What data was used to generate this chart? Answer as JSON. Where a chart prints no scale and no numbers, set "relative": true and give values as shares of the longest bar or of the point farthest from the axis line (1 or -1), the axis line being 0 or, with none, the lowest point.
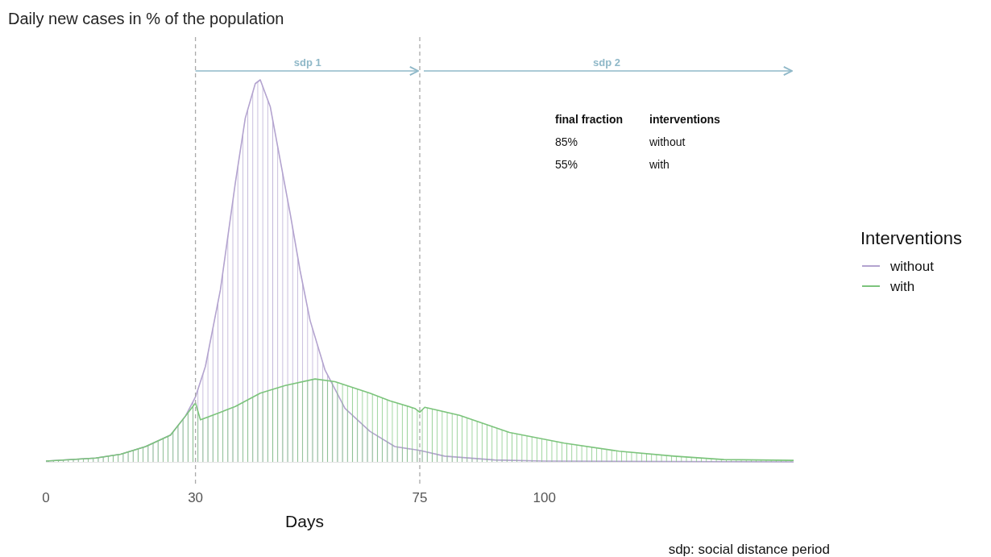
{
  "chart_data": {
    "type": "area",
    "title": "Daily new cases in % of the population",
    "xlabel": "Days",
    "legend_title": "Interventions",
    "relative": true,
    "xlim": [
      0,
      150
    ],
    "xticks": [
      0,
      30,
      75,
      100
    ],
    "grid": false,
    "legend": "right",
    "line_style": "solid",
    "marker": "none",
    "series": [
      {
        "name": "without",
        "color": "#b3a3cf",
        "x": [
          0,
          10,
          15,
          20,
          25,
          28,
          30,
          32,
          35,
          38,
          40,
          42,
          43,
          45,
          47,
          49,
          51,
          53,
          56,
          60,
          65,
          70,
          75,
          80,
          90,
          100,
          150
        ],
        "values": [
          0.002,
          0.01,
          0.02,
          0.04,
          0.07,
          0.12,
          0.17,
          0.25,
          0.45,
          0.73,
          0.9,
          0.99,
          1.0,
          0.93,
          0.79,
          0.65,
          0.5,
          0.37,
          0.24,
          0.14,
          0.08,
          0.04,
          0.03,
          0.015,
          0.005,
          0.002,
          0
        ]
      },
      {
        "name": "with",
        "color": "#7cc47c",
        "x": [
          0,
          10,
          15,
          20,
          25,
          28,
          30,
          31,
          35,
          38,
          43,
          48,
          54,
          58,
          65,
          69,
          74,
          75,
          76,
          83,
          93,
          104,
          115,
          126,
          136,
          150
        ],
        "values": [
          0.002,
          0.01,
          0.02,
          0.04,
          0.07,
          0.12,
          0.154,
          0.11,
          0.13,
          0.145,
          0.18,
          0.2,
          0.217,
          0.21,
          0.18,
          0.16,
          0.14,
          0.13,
          0.143,
          0.122,
          0.077,
          0.049,
          0.028,
          0.015,
          0.006,
          0.004
        ]
      }
    ],
    "ref_lines": [
      {
        "axis": "x",
        "value": 30,
        "color": "#aaaaaa",
        "line_style": "dashed"
      },
      {
        "axis": "x",
        "value": 75,
        "color": "#aaaaaa",
        "line_style": "dashed"
      }
    ],
    "annotations": [
      "sdp 1",
      "sdp 2",
      "final fraction",
      "interventions",
      "85%",
      "without",
      "55%",
      "with",
      "sdp: social distance period"
    ]
  }
}
